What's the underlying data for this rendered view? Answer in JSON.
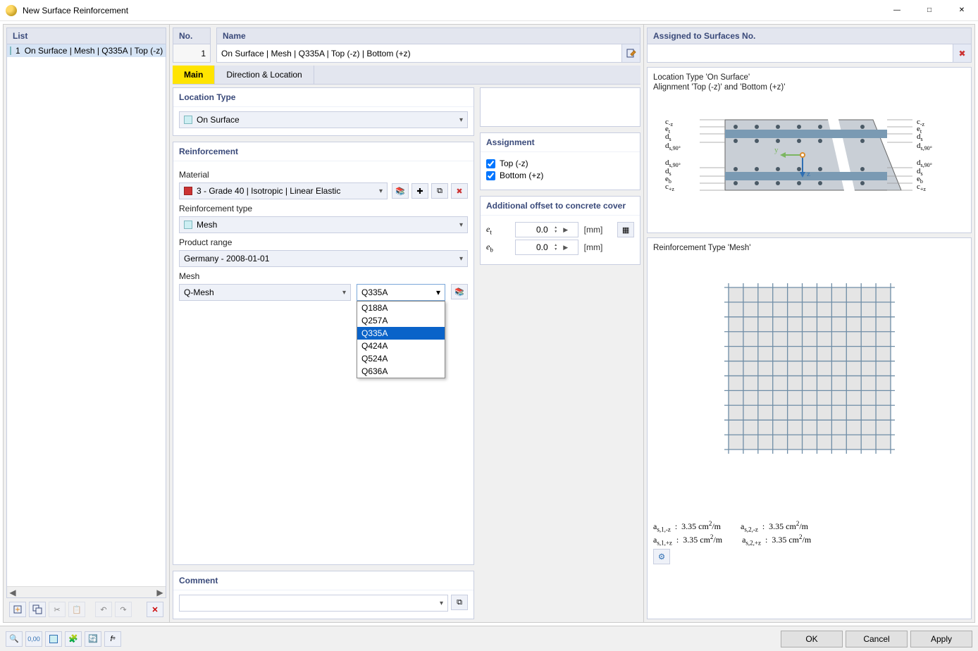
{
  "window": {
    "title": "New Surface Reinforcement"
  },
  "list": {
    "header": "List",
    "items": [
      {
        "num": "1",
        "label": "On Surface | Mesh | Q335A | Top (-z) | Bottom (+z)"
      }
    ]
  },
  "left_toolbar": {
    "delete_x": "✕"
  },
  "fields": {
    "no_label": "No.",
    "no_value": "1",
    "name_label": "Name",
    "name_value": "On Surface | Mesh | Q335A | Top (-z) | Bottom (+z)",
    "assigned_label": "Assigned to Surfaces No.",
    "assigned_value": ""
  },
  "tabs": {
    "main": "Main",
    "direction": "Direction & Location"
  },
  "location_type": {
    "title": "Location Type",
    "value": "On Surface"
  },
  "reinforcement": {
    "title": "Reinforcement",
    "material_label": "Material",
    "material_value": "3 - Grade 40 | Isotropic | Linear Elastic",
    "type_label": "Reinforcement type",
    "type_value": "Mesh",
    "range_label": "Product range",
    "range_value": "Germany - 2008-01-01",
    "mesh_label": "Mesh",
    "mesh_shape": "Q-Mesh",
    "mesh_selected": "Q335A",
    "mesh_options": [
      "Q188A",
      "Q257A",
      "Q335A",
      "Q424A",
      "Q524A",
      "Q636A"
    ]
  },
  "assignment": {
    "title": "Assignment",
    "top_label": "Top (-z)",
    "top_checked": true,
    "bottom_label": "Bottom (+z)",
    "bottom_checked": true
  },
  "offset": {
    "title": "Additional offset to concrete cover",
    "et_label": "e",
    "et_sub": "t",
    "et_value": "0.0",
    "eb_label": "e",
    "eb_sub": "b",
    "eb_value": "0.0",
    "unit": "[mm]"
  },
  "comment": {
    "title": "Comment",
    "value": ""
  },
  "preview1": {
    "line1": "Location Type 'On Surface'",
    "line2": "Alignment 'Top (-z)' and 'Bottom (+z)'",
    "section_diagram": {
      "slab_fill": "#c9cfd6",
      "band_fill": "#7a9ab3",
      "dot_fill": "#4a5a66",
      "axis_y_color": "#7bb661",
      "axis_z_color": "#2f6fb3",
      "left_labels": [
        "c",
        "e",
        "d",
        "d",
        "d",
        "d",
        "e",
        "c"
      ],
      "left_subs": [
        "-z",
        "t",
        "s",
        "s,90°",
        "s,90°",
        "s",
        "b",
        "+z"
      ],
      "right_labels": [
        "c",
        "e",
        "d",
        "d",
        "d",
        "d",
        "e",
        "c"
      ],
      "right_subs": [
        "-z",
        "t",
        "s",
        "s,90°",
        "s,90°",
        "s",
        "b",
        "+z"
      ]
    }
  },
  "preview2": {
    "title": "Reinforcement Type 'Mesh'",
    "mesh_diagram": {
      "grid_color": "#6f8da6",
      "border_color": "#888888",
      "fill": "#e5e5e5",
      "cells": 11,
      "size": 230
    }
  },
  "results": {
    "rows": [
      {
        "label_html": "a<sub>s,1,-z</sub>",
        "value": "3.35",
        "unit_html": "cm<sup>2</sup>/m"
      },
      {
        "label_html": "a<sub>s,2,-z</sub>",
        "value": "3.35",
        "unit_html": "cm<sup>2</sup>/m"
      },
      {
        "label_html": "a<sub>s,1,+z</sub>",
        "value": "3.35",
        "unit_html": "cm<sup>2</sup>/m"
      },
      {
        "label_html": "a<sub>s,2,+z</sub>",
        "value": "3.35",
        "unit_html": "cm<sup>2</sup>/m"
      }
    ]
  },
  "buttons": {
    "ok": "OK",
    "cancel": "Cancel",
    "apply": "Apply"
  }
}
